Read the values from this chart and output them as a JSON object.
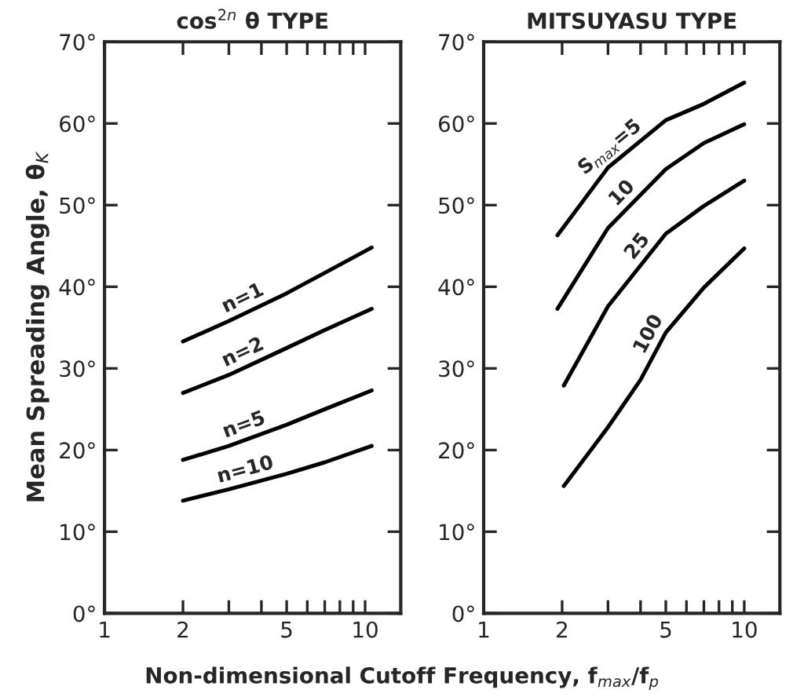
{
  "chart_data": [
    {
      "type": "line",
      "title": "cos$^{2n}$ θ TYPE",
      "xlabel": "Non-dimensional Cutoff Frequency, f$_{max}$/f$_{p}$",
      "ylabel": "Mean Spreading Angle, θ$_{K}$",
      "log": "x",
      "xlim": [
        1,
        13.7
      ],
      "ylim": [
        0,
        70
      ],
      "xticks": [
        1,
        2,
        {
          "value": 3,
          "label": null
        },
        {
          "value": 4,
          "label": null
        },
        5,
        {
          "value": 6,
          "label": null
        },
        {
          "value": 7,
          "label": null
        },
        {
          "value": 8,
          "label": null
        },
        {
          "value": 9,
          "label": null
        },
        10
      ],
      "yticks": [
        {
          "value": 0,
          "label": "0°"
        },
        {
          "value": 10,
          "label": "10°"
        },
        {
          "value": 20,
          "label": "20°"
        },
        {
          "value": 30,
          "label": "30°"
        },
        {
          "value": 40,
          "label": "40°"
        },
        {
          "value": 50,
          "label": "50°"
        },
        {
          "value": 60,
          "label": "60°"
        },
        {
          "value": 70,
          "label": "70°"
        }
      ],
      "x": [
        2,
        3,
        5,
        7,
        10.6
      ],
      "series": [
        {
          "name": "n=1",
          "color": "#000000",
          "values": [
            33.3,
            35.8,
            39.2,
            41.7,
            44.8
          ]
        },
        {
          "name": "n=2",
          "color": "#000000",
          "values": [
            27,
            29.2,
            32.5,
            34.7,
            37.3
          ]
        },
        {
          "name": "n=5",
          "color": "#000000",
          "values": [
            18.8,
            20.5,
            23.1,
            25,
            27.3
          ]
        },
        {
          "name": "n=10",
          "color": "#000000",
          "values": [
            13.8,
            15.2,
            17.1,
            18.5,
            20.5
          ]
        }
      ]
    },
    {
      "type": "line",
      "title": "MITSUYASU TYPE",
      "log": "x",
      "xlim": [
        1,
        13.7
      ],
      "ylim": [
        0,
        70
      ],
      "xticks": [
        1,
        2,
        {
          "value": 3,
          "label": null
        },
        {
          "value": 4,
          "label": null
        },
        5,
        {
          "value": 6,
          "label": null
        },
        {
          "value": 7,
          "label": null
        },
        {
          "value": 8,
          "label": null
        },
        {
          "value": 9,
          "label": null
        },
        10
      ],
      "yticks": [
        {
          "value": 0,
          "label": "0°"
        },
        {
          "value": 10,
          "label": "10°"
        },
        {
          "value": 20,
          "label": "20°"
        },
        {
          "value": 30,
          "label": "30°"
        },
        {
          "value": 40,
          "label": "40°"
        },
        {
          "value": 50,
          "label": "50°"
        },
        {
          "value": 60,
          "label": "60°"
        },
        {
          "value": 70,
          "label": "70°"
        }
      ],
      "series": [
        {
          "name": "S$_{max}$=5",
          "color": "#000000",
          "x": [
            1.92,
            3,
            5,
            7,
            10
          ],
          "values": [
            46.3,
            54.6,
            60.4,
            62.4,
            65
          ]
        },
        {
          "name": "10",
          "color": "#000000",
          "x": [
            1.92,
            3,
            5,
            7,
            10
          ],
          "values": [
            37.3,
            47.2,
            54.4,
            57.6,
            59.9
          ]
        },
        {
          "name": "25",
          "color": "#000000",
          "x": [
            2.03,
            3,
            5,
            7,
            10
          ],
          "values": [
            27.9,
            37.6,
            46.5,
            49.9,
            53
          ]
        },
        {
          "name": "100",
          "color": "#000000",
          "x": [
            2.03,
            3,
            4,
            5,
            7,
            10
          ],
          "values": [
            15.6,
            22.8,
            28.6,
            34.4,
            39.9,
            44.7
          ]
        }
      ]
    }
  ]
}
